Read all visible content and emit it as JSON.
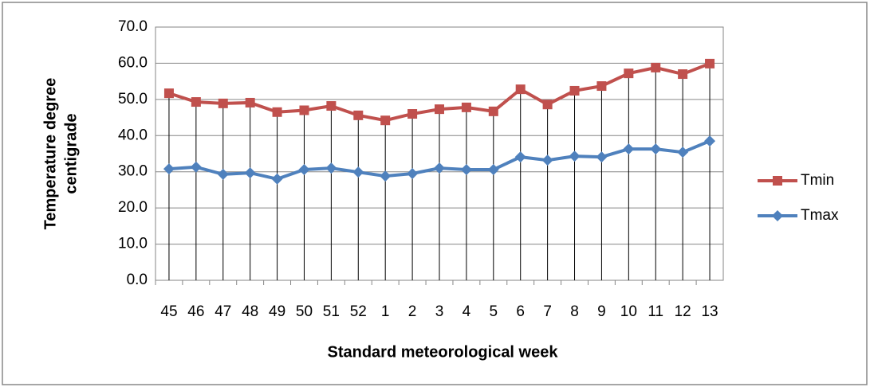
{
  "chart_data": {
    "type": "line",
    "xlabel": "Standard meteorological week",
    "ylabel_lines": [
      "Temperature degree",
      "centigrade"
    ],
    "categories": [
      "45",
      "46",
      "47",
      "48",
      "49",
      "50",
      "51",
      "52",
      "1",
      "2",
      "3",
      "4",
      "5",
      "6",
      "7",
      "8",
      "9",
      "10",
      "11",
      "12",
      "13"
    ],
    "series": [
      {
        "name": "Tmin",
        "color": "#c0504d",
        "marker": "square",
        "values": [
          51.7,
          49.3,
          48.9,
          49.1,
          46.5,
          47.0,
          48.2,
          45.6,
          44.2,
          46.0,
          47.3,
          47.8,
          46.7,
          52.8,
          48.6,
          52.4,
          53.7,
          57.2,
          58.8,
          57.0,
          59.9
        ]
      },
      {
        "name": "Tmax",
        "color": "#4f81bd",
        "marker": "diamond",
        "values": [
          30.8,
          31.3,
          29.3,
          29.7,
          28.0,
          30.6,
          31.0,
          29.9,
          28.8,
          29.5,
          31.0,
          30.6,
          30.6,
          34.1,
          33.2,
          34.3,
          34.1,
          36.3,
          36.3,
          35.4,
          38.5
        ]
      }
    ],
    "ylim": [
      0,
      70
    ],
    "yticks": [
      {
        "value": 0,
        "label": "0.0"
      },
      {
        "value": 10,
        "label": "10.0"
      },
      {
        "value": 20,
        "label": "20.0"
      },
      {
        "value": 30,
        "label": "30.0"
      },
      {
        "value": 40,
        "label": "40.0"
      },
      {
        "value": 50,
        "label": "50.0"
      },
      {
        "value": 60,
        "label": "60.0"
      },
      {
        "value": 70,
        "label": "70.0"
      }
    ],
    "grid": true,
    "drop_lines": true,
    "legend": "right"
  }
}
